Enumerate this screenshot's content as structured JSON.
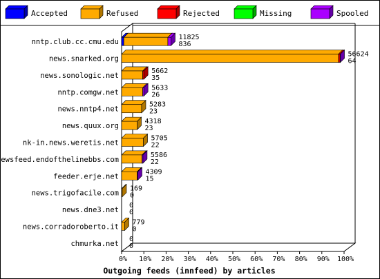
{
  "chart_data": {
    "type": "bar",
    "orientation": "horizontal",
    "style": "3d-stacked",
    "title": "Outgoing feeds (innfeed) by articles",
    "legend": {
      "placement": "top",
      "items": [
        {
          "name": "Accepted",
          "color": "#0000ff"
        },
        {
          "name": "Refused",
          "color": "#ffaa00"
        },
        {
          "name": "Rejected",
          "color": "#ff0000"
        },
        {
          "name": "Missing",
          "color": "#00ff00"
        },
        {
          "name": "Spooled",
          "color": "#aa00ff"
        }
      ]
    },
    "x_ticks": [
      "0%",
      "10%",
      "20%",
      "30%",
      "40%",
      "50%",
      "60%",
      "70%",
      "80%",
      "90%",
      "100%"
    ],
    "xlim": [
      0,
      100
    ],
    "categories": [
      "nntp.club.cc.cmu.edu",
      "news.snarked.org",
      "news.sonologic.net",
      "nntp.comgw.net",
      "news.nntp4.net",
      "news.quux.org",
      "nk-in.news.weretis.net",
      "newsfeed.endofthelinebbs.com",
      "feeder.erje.net",
      "news.trigofacile.com",
      "news.dne3.net",
      "news.corradoroberto.it",
      "chmurka.net"
    ],
    "series": [
      {
        "name": "Accepted",
        "values": [
          1.0,
          0,
          0,
          0,
          0,
          0,
          0,
          0,
          0,
          0,
          0,
          0,
          0
        ]
      },
      {
        "name": "Refused",
        "values": [
          19.8,
          97.5,
          9.5,
          9.5,
          9.0,
          7.0,
          9.8,
          9.2,
          7.0,
          0.3,
          0,
          1.4,
          0
        ]
      },
      {
        "name": "Rejected",
        "values": [
          0,
          0.7,
          0.5,
          0,
          0,
          0,
          0,
          0,
          0,
          0,
          0,
          0,
          0
        ]
      },
      {
        "name": "Missing",
        "values": [
          0,
          0,
          0,
          0,
          0,
          0,
          0,
          0,
          0,
          0,
          0,
          0,
          0
        ]
      },
      {
        "name": "Spooled",
        "values": [
          1.4,
          0.1,
          0,
          0.5,
          0,
          0,
          0,
          0.4,
          0.3,
          0,
          0,
          0,
          0
        ]
      }
    ],
    "value_labels": [
      [
        "11825",
        "836"
      ],
      [
        "56624",
        "64"
      ],
      [
        "5662",
        "35"
      ],
      [
        "5633",
        "26"
      ],
      [
        "5283",
        "23"
      ],
      [
        "4318",
        "23"
      ],
      [
        "5705",
        "22"
      ],
      [
        "5586",
        "22"
      ],
      [
        "4309",
        "15"
      ],
      [
        "169",
        "0"
      ],
      [
        "0",
        "0"
      ],
      [
        "779",
        "0"
      ],
      [
        "0",
        "0"
      ]
    ],
    "edge_colors": {
      "Accepted": "#0000aa",
      "Refused": "#b27700",
      "Rejected": "#aa0000",
      "Missing": "#00aa00",
      "Spooled": "#6600aa"
    }
  }
}
